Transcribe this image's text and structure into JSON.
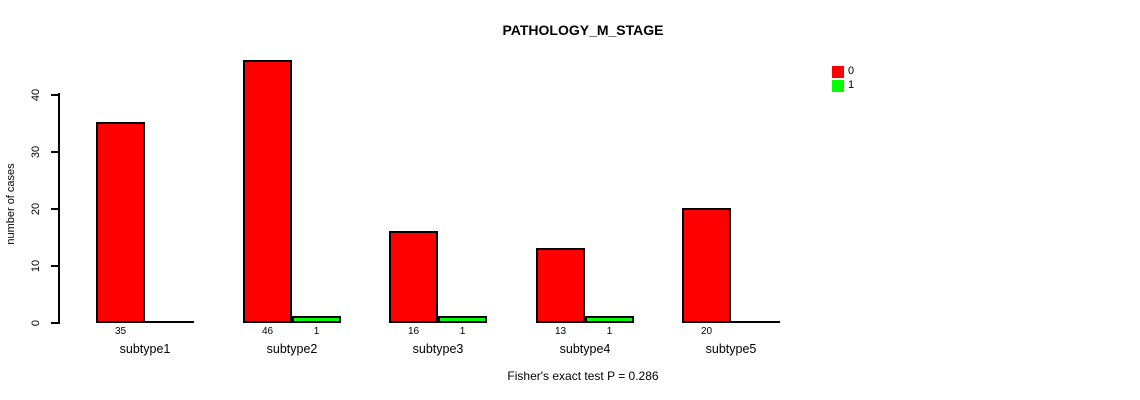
{
  "chart_data": {
    "type": "bar",
    "title": "PATHOLOGY_M_STAGE",
    "ylabel": "number of cases",
    "xlabel": "",
    "annotation": "Fisher's exact test P = 0.286",
    "categories": [
      "subtype1",
      "subtype2",
      "subtype3",
      "subtype4",
      "subtype5"
    ],
    "series": [
      {
        "name": "0",
        "color": "#FF0000",
        "values": [
          35,
          46,
          16,
          13,
          20
        ]
      },
      {
        "name": "1",
        "color": "#00FF00",
        "values": [
          0,
          1,
          1,
          1,
          0
        ]
      }
    ],
    "yticks": [
      0,
      10,
      20,
      30,
      40
    ],
    "ylim": [
      0,
      46
    ],
    "grid": false,
    "legend_position": "top-right",
    "bar_value_labels_shown": true,
    "value_labels": {
      "subtype1": [
        "35",
        ""
      ],
      "subtype2": [
        "46",
        "1"
      ],
      "subtype3": [
        "16",
        "1"
      ],
      "subtype4": [
        "13",
        "1"
      ],
      "subtype5": [
        "20",
        ""
      ]
    },
    "colors": {
      "background": "#FFFFFF",
      "axis": "#000000",
      "series_0": "#FF0000",
      "series_1": "#00FF00"
    }
  }
}
